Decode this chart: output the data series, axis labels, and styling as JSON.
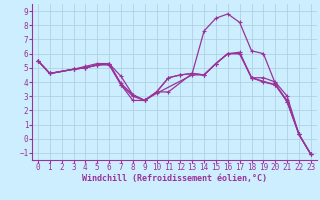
{
  "background_color": "#cceeff",
  "grid_color": "#aaccdd",
  "line_color": "#993399",
  "marker": "+",
  "markersize": 3,
  "linewidth": 0.9,
  "xlabel": "Windchill (Refroidissement éolien,°C)",
  "xlabel_fontsize": 6,
  "tick_fontsize": 5.5,
  "xlim": [
    -0.5,
    23.5
  ],
  "ylim": [
    -1.5,
    9.5
  ],
  "yticks": [
    -1,
    0,
    1,
    2,
    3,
    4,
    5,
    6,
    7,
    8,
    9
  ],
  "xticks": [
    0,
    1,
    2,
    3,
    4,
    5,
    6,
    7,
    8,
    9,
    10,
    11,
    12,
    13,
    14,
    15,
    16,
    17,
    18,
    19,
    20,
    21,
    22,
    23
  ],
  "series": [
    {
      "x": [
        0,
        1,
        3,
        4,
        5,
        6,
        7,
        8,
        9,
        10,
        11,
        13,
        14,
        15,
        16,
        17,
        18,
        19,
        20,
        21,
        22,
        23
      ],
      "y": [
        5.5,
        4.6,
        4.9,
        5.0,
        5.2,
        5.3,
        4.4,
        3.1,
        2.7,
        3.3,
        3.3,
        4.6,
        7.6,
        8.5,
        8.8,
        8.2,
        6.2,
        6.0,
        3.9,
        2.6,
        0.3,
        -1.1
      ]
    },
    {
      "x": [
        0,
        1,
        3,
        4,
        5,
        6,
        7,
        8,
        9,
        10,
        11,
        12,
        13,
        14,
        15,
        16,
        17,
        18,
        19,
        20,
        21,
        22,
        23
      ],
      "y": [
        5.5,
        4.6,
        4.9,
        5.1,
        5.3,
        5.3,
        3.9,
        3.1,
        2.7,
        3.3,
        4.3,
        4.5,
        4.6,
        4.5,
        5.3,
        6.0,
        6.1,
        4.3,
        4.3,
        4.0,
        3.0,
        0.3,
        -1.1
      ]
    },
    {
      "x": [
        0,
        1,
        3,
        4,
        5,
        6,
        7,
        8,
        9,
        10,
        11,
        12,
        13,
        14,
        15,
        16,
        17,
        18,
        19,
        20,
        21,
        22,
        23
      ],
      "y": [
        5.5,
        4.6,
        4.9,
        5.0,
        5.2,
        5.2,
        3.8,
        2.7,
        2.7,
        3.3,
        4.3,
        4.5,
        4.6,
        4.5,
        5.3,
        6.0,
        6.0,
        4.3,
        4.0,
        3.8,
        2.7,
        0.3,
        -1.1
      ]
    },
    {
      "x": [
        0,
        1,
        3,
        4,
        5,
        6,
        7,
        8,
        9,
        10,
        13,
        14,
        15,
        16,
        17,
        18,
        20,
        21,
        22,
        23
      ],
      "y": [
        5.5,
        4.6,
        4.9,
        5.0,
        5.2,
        5.3,
        3.8,
        3.0,
        2.7,
        3.2,
        4.5,
        4.5,
        5.3,
        6.0,
        6.0,
        4.3,
        3.8,
        2.6,
        0.3,
        -1.1
      ]
    }
  ]
}
